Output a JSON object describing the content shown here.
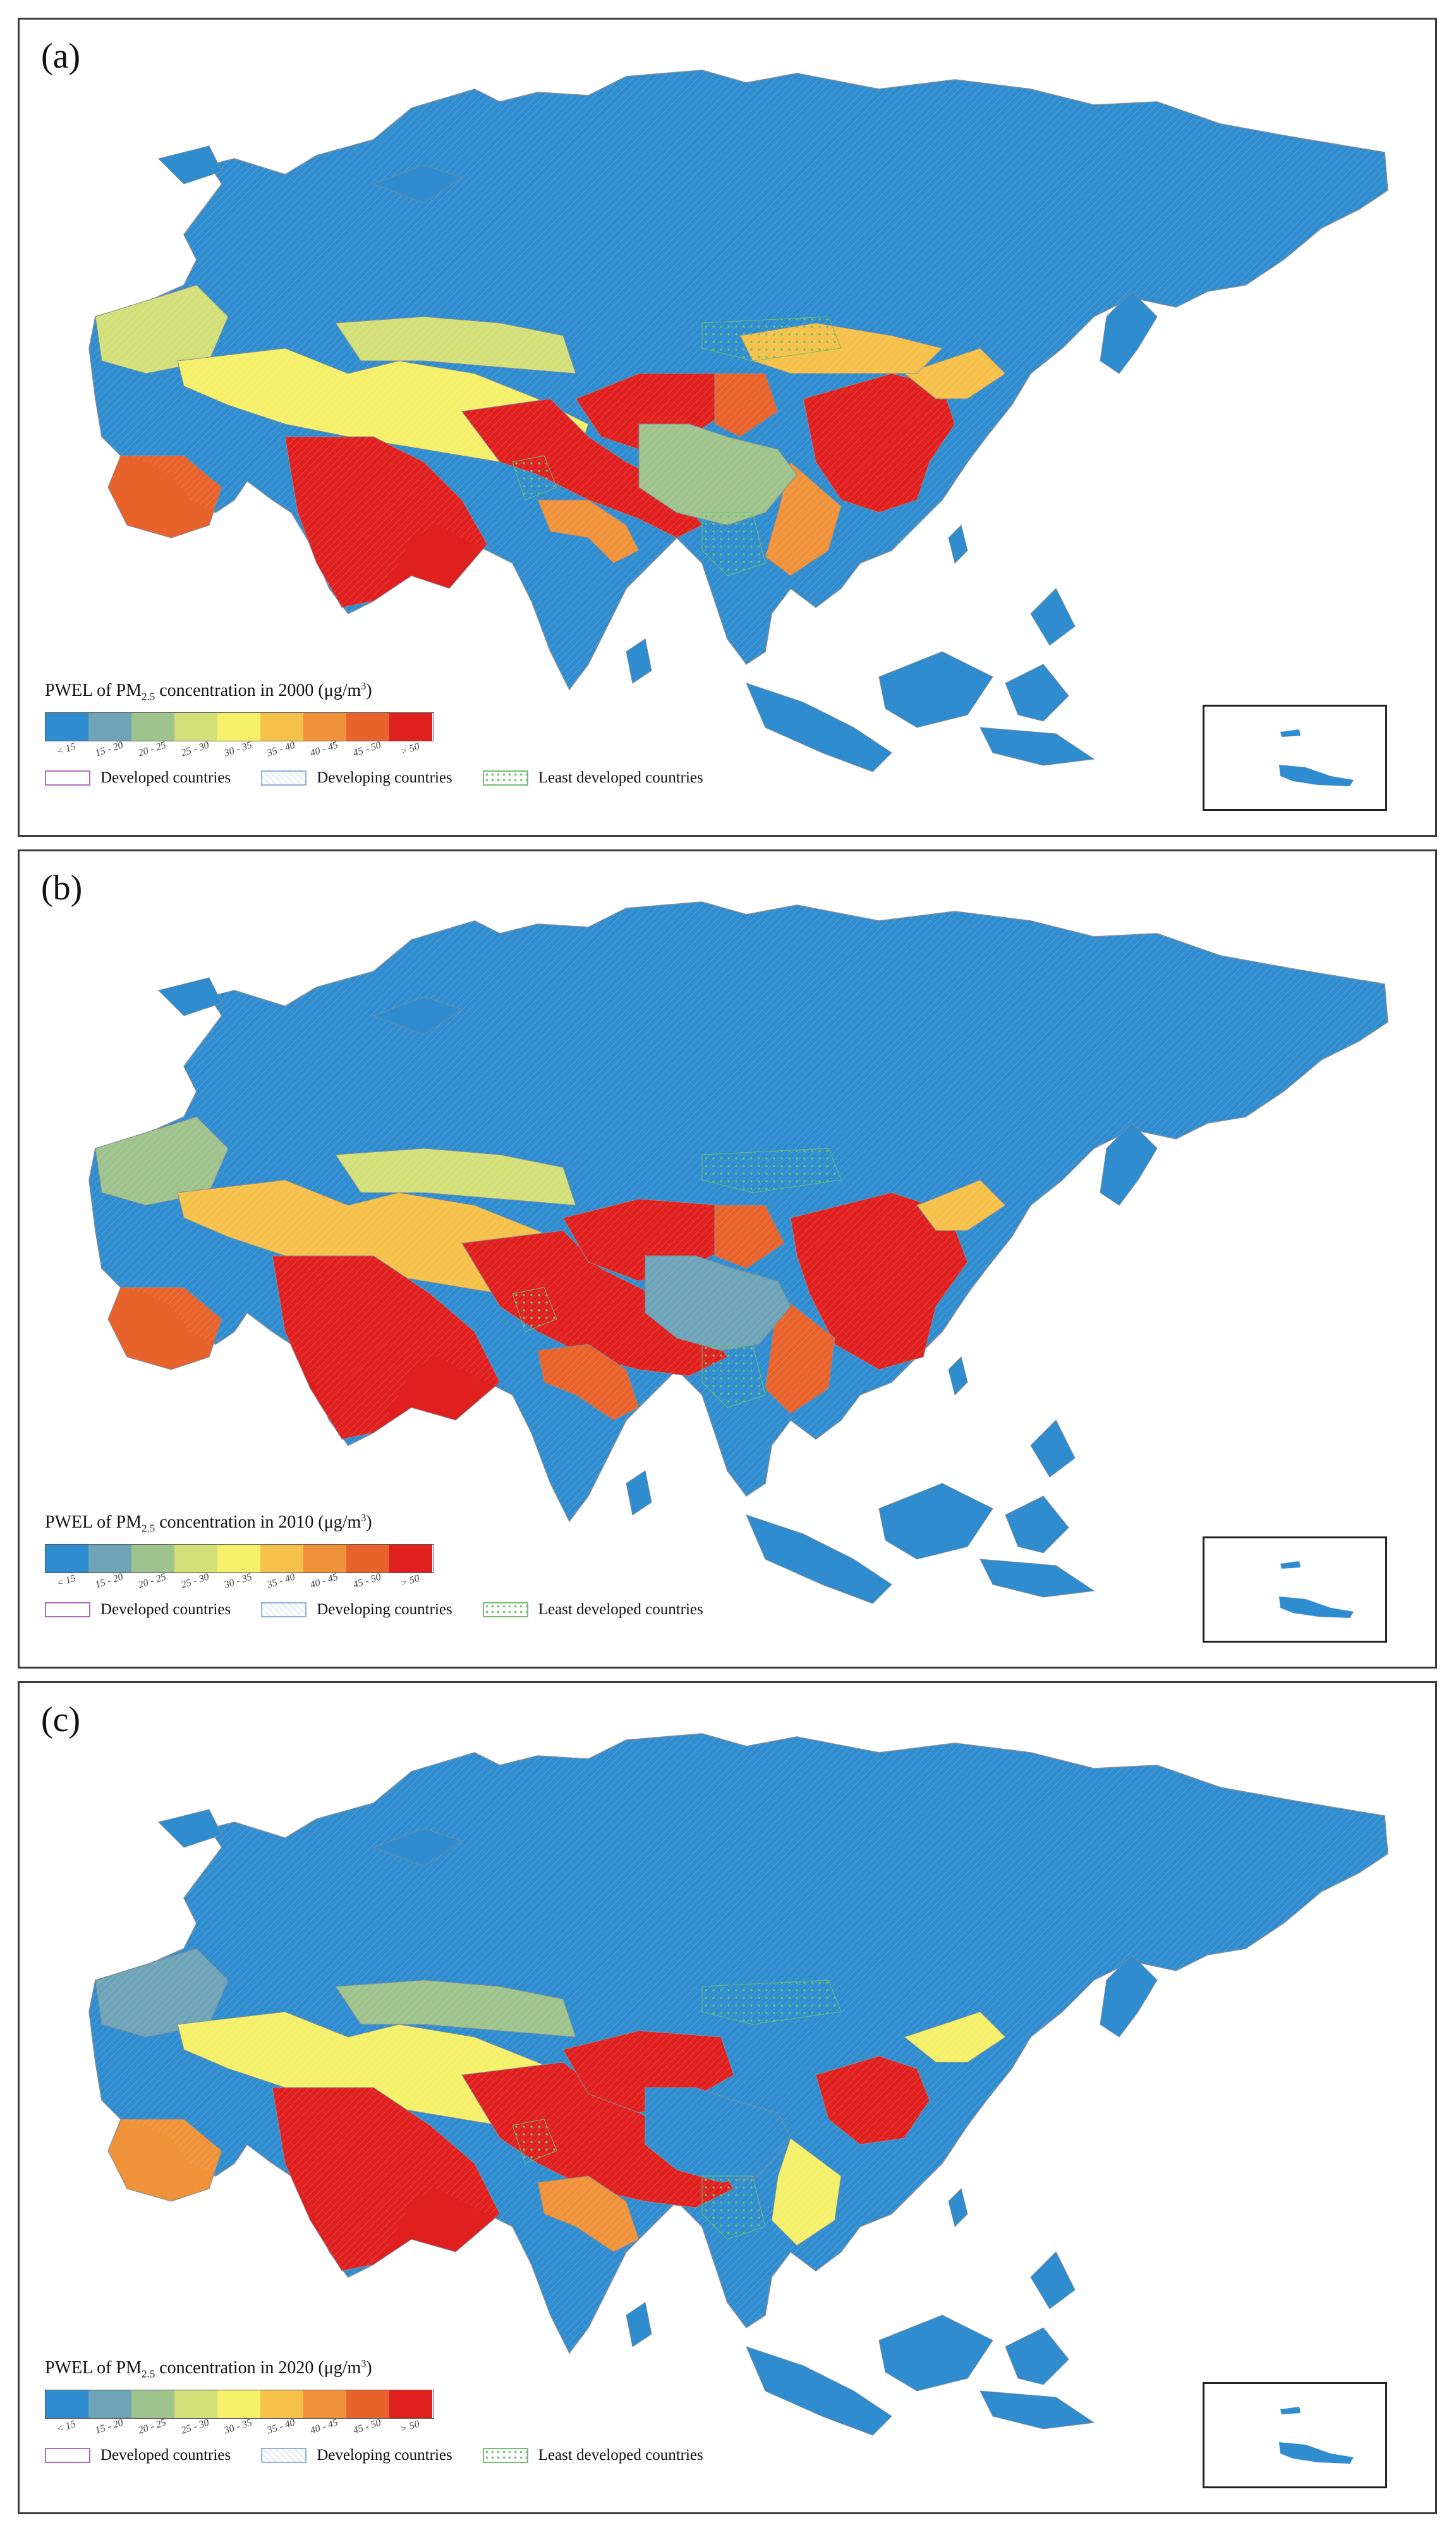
{
  "panels": [
    {
      "label": "(a)",
      "year": "2000",
      "legend_title": {
        "prefix": "PWEL of PM",
        "sub": "2.5",
        "middle": " concentration in 2000 (μg/m",
        "sup": "3",
        "suffix": ")"
      }
    },
    {
      "label": "(b)",
      "year": "2010",
      "legend_title": {
        "prefix": "PWEL of PM",
        "sub": "2.5",
        "middle": " concentration in 2010 (μg/m",
        "sup": "3",
        "suffix": ")"
      }
    },
    {
      "label": "(c)",
      "year": "2020",
      "legend_title": {
        "prefix": "PWEL of PM",
        "sub": "2.5",
        "middle": " concentration in 2020 (μg/m",
        "sup": "3",
        "suffix": ")"
      }
    }
  ],
  "legend": {
    "classes": [
      "< 15",
      "15 - 20",
      "20 - 25",
      "25 - 30",
      "30 - 35",
      "35 - 40",
      "40 - 45",
      "45 - 50",
      "> 50"
    ],
    "colors": [
      "#2f8ccf",
      "#6ea3b8",
      "#9fc38c",
      "#d3e07a",
      "#f5f06a",
      "#f6c14a",
      "#f0923a",
      "#e8622c",
      "#e0201f"
    ]
  },
  "categories": [
    {
      "name": "developed",
      "label": "Developed countries"
    },
    {
      "name": "developing",
      "label": "Developing countries"
    },
    {
      "name": "least-developed",
      "label": "Least developed countries"
    }
  ],
  "map_colors": {
    "ocean": "#ffffff",
    "base": "#2f8ccf",
    "border": "#7b8a99"
  }
}
